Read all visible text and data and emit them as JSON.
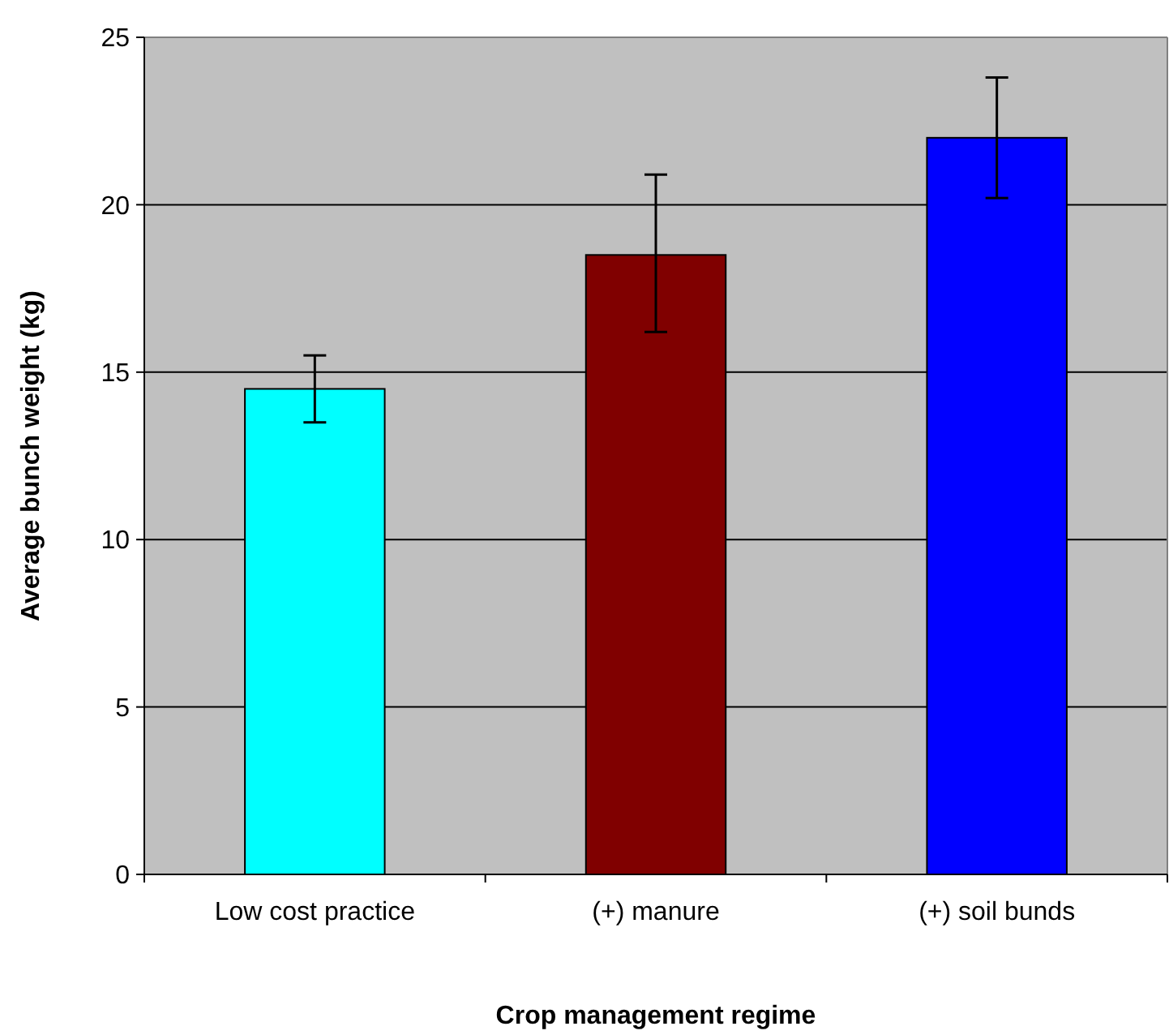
{
  "chart_data": {
    "type": "bar",
    "xlabel": "Crop management regime",
    "ylabel": "Average bunch weight (kg)",
    "categories": [
      "Low cost practice",
      "(+) manure",
      "(+) soil bunds"
    ],
    "values": [
      14.5,
      18.5,
      22.0
    ],
    "colors": [
      "#00ffff",
      "#800000",
      "#0000ff"
    ],
    "errors": [
      [
        13.5,
        15.5
      ],
      [
        16.2,
        20.9
      ],
      [
        20.2,
        23.8
      ]
    ],
    "ylim": [
      0,
      25
    ],
    "yticks": [
      0,
      5,
      10,
      15,
      20,
      25
    ],
    "grid": "y"
  }
}
